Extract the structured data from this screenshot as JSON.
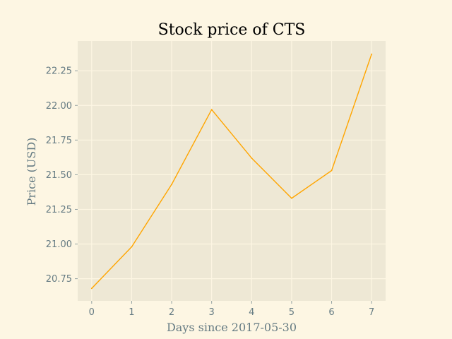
{
  "chart_data": {
    "type": "line",
    "title": "Stock price of CTS",
    "xlabel": "Days since 2017-05-30",
    "ylabel": "Price (USD)",
    "x": [
      0,
      1,
      2,
      3,
      4,
      5,
      6,
      7
    ],
    "series": [
      {
        "values": [
          20.68,
          20.98,
          21.43,
          21.97,
          21.62,
          21.33,
          21.53,
          22.37
        ]
      }
    ],
    "xlim": [
      -0.35,
      7.35
    ],
    "ylim": [
      20.59,
      22.465
    ],
    "xticks": [
      "0",
      "1",
      "2",
      "3",
      "4",
      "5",
      "6",
      "7"
    ],
    "yticks": [
      "20.75",
      "21.00",
      "21.25",
      "21.50",
      "21.75",
      "22.00",
      "22.25"
    ],
    "grid": true,
    "line_color": "#ffa500",
    "plot_background": "#eee8d5",
    "grid_color": "#fdf6e3"
  }
}
